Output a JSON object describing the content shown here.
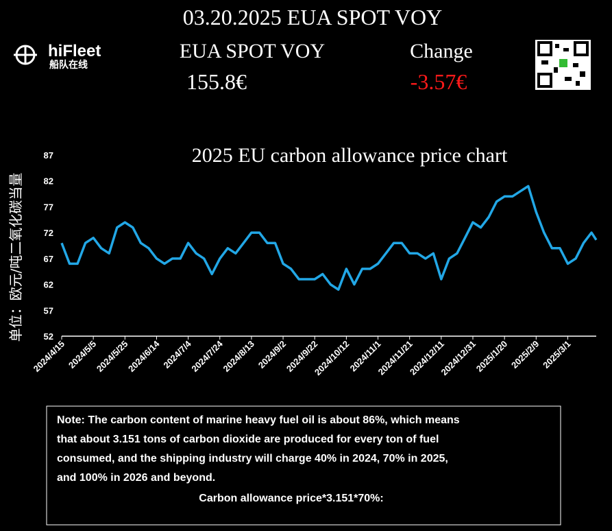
{
  "header": {
    "title": "03.20.2025 EUA SPOT VOY",
    "logo_name": "hiFleet",
    "logo_subtitle": "船队在线",
    "price_label": "EUA SPOT VOY",
    "price_value": "155.8€",
    "change_label": "Change",
    "change_value": "-3.57€"
  },
  "chart_data": {
    "type": "line",
    "title": "2025 EU carbon allowance price chart",
    "y_label": "单位：欧元/吨二氧化碳当量",
    "color": "#22a7e6",
    "grid": false,
    "x": [
      "2024/4/15",
      "2024/4/20",
      "2024/4/25",
      "2024/4/30",
      "2024/5/5",
      "2024/5/10",
      "2024/5/15",
      "2024/5/20",
      "2024/5/25",
      "2024/5/30",
      "2024/6/4",
      "2024/6/9",
      "2024/6/14",
      "2024/6/19",
      "2024/6/24",
      "2024/6/29",
      "2024/7/4",
      "2024/7/9",
      "2024/7/14",
      "2024/7/19",
      "2024/7/24",
      "2024/7/29",
      "2024/8/3",
      "2024/8/8",
      "2024/8/13",
      "2024/8/18",
      "2024/8/23",
      "2024/8/28",
      "2024/9/2",
      "2024/9/7",
      "2024/9/12",
      "2024/9/17",
      "2024/9/22",
      "2024/9/27",
      "2024/10/2",
      "2024/10/7",
      "2024/10/12",
      "2024/10/17",
      "2024/10/22",
      "2024/10/27",
      "2024/11/1",
      "2024/11/6",
      "2024/11/11",
      "2024/11/16",
      "2024/11/21",
      "2024/11/26",
      "2024/12/1",
      "2024/12/6",
      "2024/12/11",
      "2024/12/16",
      "2024/12/21",
      "2024/12/26",
      "2024/12/31",
      "2025/1/5",
      "2025/1/10",
      "2025/1/15",
      "2025/1/20",
      "2025/1/25",
      "2025/1/30",
      "2025/2/4",
      "2025/2/9",
      "2025/2/14",
      "2025/2/19",
      "2025/2/24",
      "2025/3/1",
      "2025/3/6",
      "2025/3/11",
      "2025/3/16",
      "2025/3/19"
    ],
    "values": [
      70,
      66,
      66,
      70,
      71,
      69,
      68,
      73,
      74,
      73,
      70,
      69,
      67,
      66,
      67,
      67,
      70,
      68,
      67,
      64,
      67,
      69,
      68,
      70,
      72,
      72,
      70,
      70,
      66,
      65,
      63,
      63,
      63,
      64,
      62,
      61,
      65,
      62,
      65,
      65,
      66,
      68,
      70,
      70,
      68,
      68,
      67,
      68,
      63,
      67,
      68,
      71,
      74,
      73,
      75,
      78,
      79,
      79,
      80,
      81,
      76,
      72,
      69,
      69,
      66,
      67,
      70,
      72,
      70.6
    ],
    "xlim": [
      "2024/4/15",
      "2025/3/19"
    ],
    "xticks": [
      "2024/4/15",
      "2024/5/5",
      "2024/5/25",
      "2024/6/14",
      "2024/7/4",
      "2024/7/24",
      "2024/8/13",
      "2024/9/2",
      "2024/9/22",
      "2024/10/12",
      "2024/11/1",
      "2024/11/21",
      "2024/12/11",
      "2024/12/31",
      "2025/1/20",
      "2025/2/9",
      "2025/3/1"
    ],
    "ylim": [
      52,
      87
    ],
    "yticks": [
      52,
      57,
      62,
      67,
      72,
      77,
      82,
      87
    ]
  },
  "note": {
    "lines": [
      "Note: The carbon content of marine heavy fuel oil is about 86%, which means",
      "that about 3.151 tons of carbon dioxide are produced for every ton of fuel",
      "consumed, and the shipping industry will charge 40% in 2024, 70% in 2025,",
      "and 100% in 2026 and beyond."
    ],
    "formula": "Carbon allowance price*3.151*70%:"
  }
}
